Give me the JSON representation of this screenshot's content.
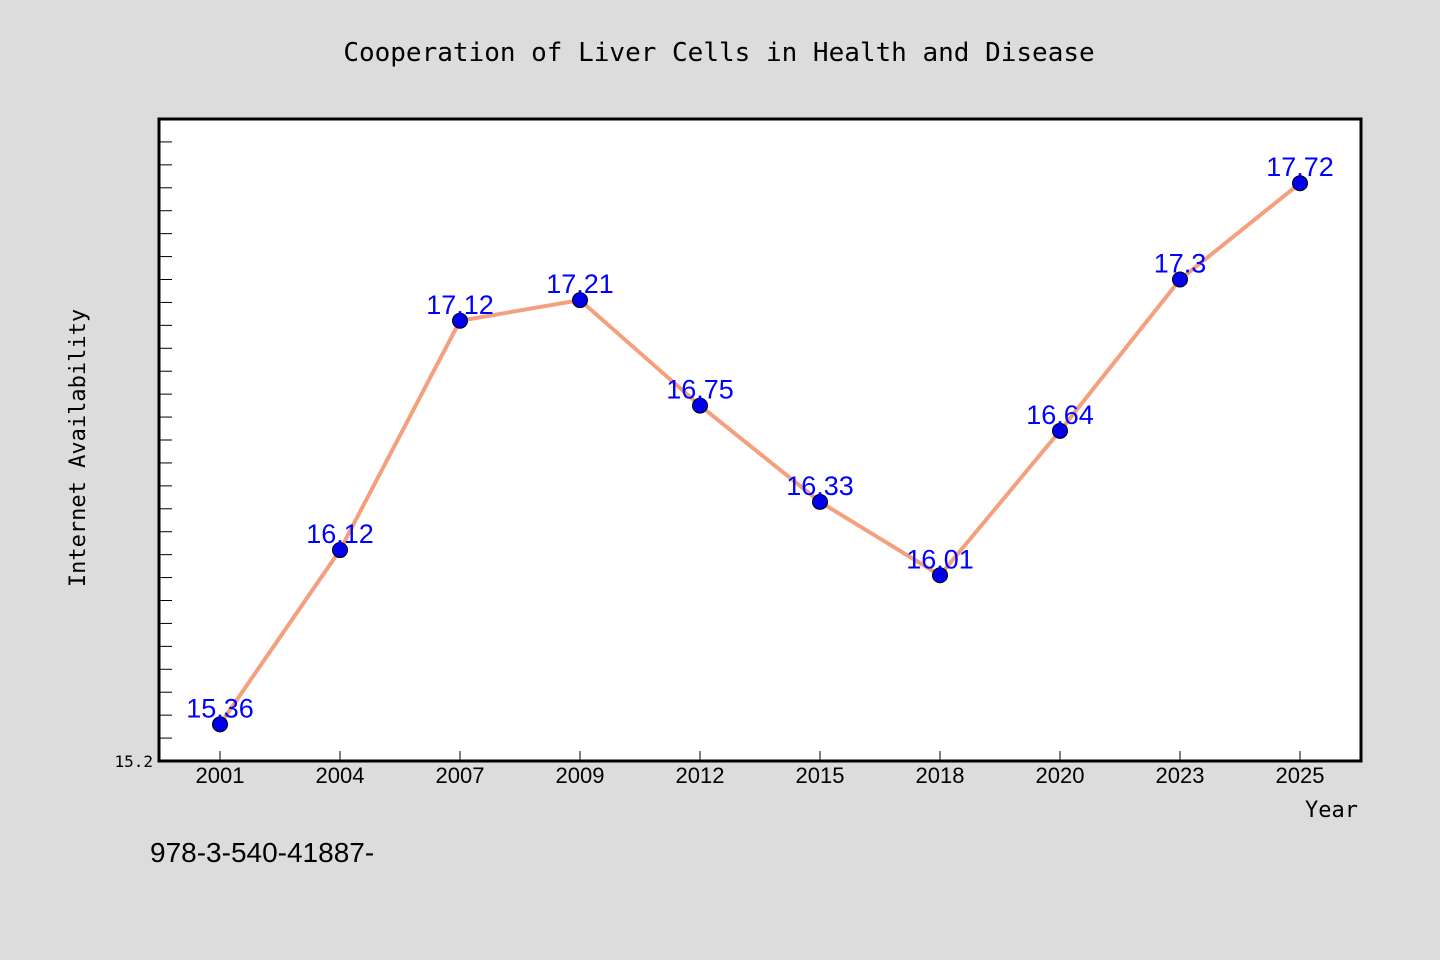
{
  "chart_data": {
    "type": "line",
    "title": "Cooperation of Liver Cells in Health and Disease",
    "xlabel": "Year",
    "ylabel": "Internet Availability",
    "categories": [
      "2001",
      "2004",
      "2007",
      "2009",
      "2012",
      "2015",
      "2018",
      "2020",
      "2023",
      "2025"
    ],
    "series": [
      {
        "values": [
          15.36,
          16.12,
          17.12,
          17.21,
          16.75,
          16.33,
          16.01,
          16.64,
          17.3,
          17.72
        ],
        "value_labels": [
          "15.36",
          "16.12",
          "17.12",
          "17.21",
          "16.75",
          "16.33",
          "16.01",
          "16.64",
          "17.3",
          "17.72"
        ]
      }
    ],
    "ylim": [
      15.2,
      18.0
    ],
    "yticks_labeled": [
      "15.2"
    ],
    "ytick_step": 0.1,
    "grid": false,
    "colors": {
      "line": "#f4a07f",
      "marker": "#0000ee",
      "data_label": "#0000ff",
      "plot_background": "#ffffff",
      "page_background": "#dcdcdc"
    }
  },
  "footer_text": "978-3-540-41887-"
}
